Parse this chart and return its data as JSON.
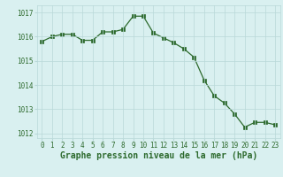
{
  "x": [
    0,
    1,
    2,
    3,
    4,
    5,
    6,
    7,
    8,
    9,
    10,
    11,
    12,
    13,
    14,
    15,
    16,
    17,
    18,
    19,
    20,
    21,
    22,
    23
  ],
  "y": [
    1015.8,
    1016.0,
    1016.1,
    1016.1,
    1015.85,
    1015.85,
    1016.2,
    1016.2,
    1016.3,
    1016.85,
    1016.85,
    1016.15,
    1015.95,
    1015.75,
    1015.5,
    1015.15,
    1014.2,
    1013.55,
    1013.25,
    1012.8,
    1012.25,
    1012.45,
    1012.45,
    1012.35
  ],
  "line_color": "#2d6a2d",
  "marker_color": "#2d6a2d",
  "bg_color": "#d9f0f0",
  "grid_color": "#b8d8d8",
  "xlabel": "Graphe pression niveau de la mer (hPa)",
  "xlim": [
    -0.5,
    23.5
  ],
  "ylim": [
    1011.8,
    1017.3
  ],
  "yticks": [
    1012,
    1013,
    1014,
    1015,
    1016,
    1017
  ],
  "xticks": [
    0,
    1,
    2,
    3,
    4,
    5,
    6,
    7,
    8,
    9,
    10,
    11,
    12,
    13,
    14,
    15,
    16,
    17,
    18,
    19,
    20,
    21,
    22,
    23
  ],
  "tick_fontsize": 5.5,
  "xlabel_fontsize": 7.0
}
